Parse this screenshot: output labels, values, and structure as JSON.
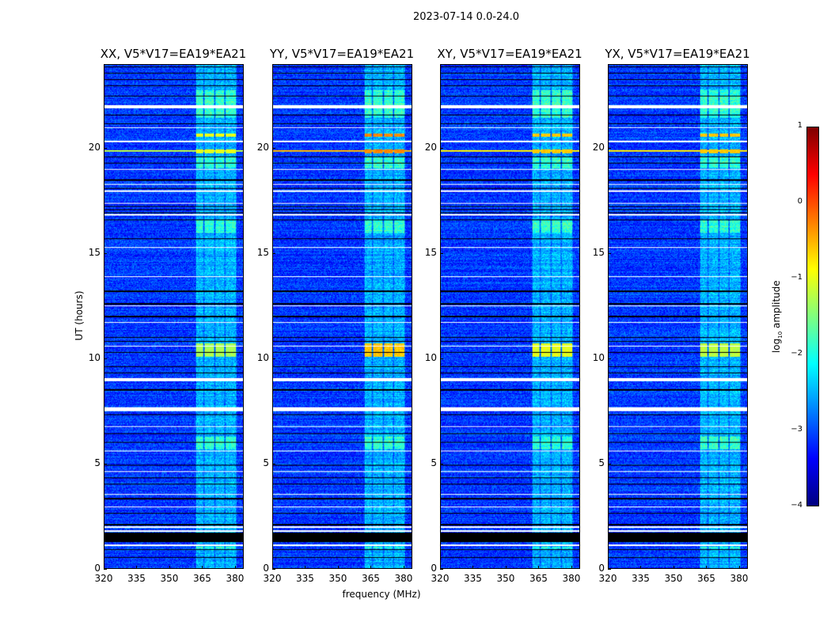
{
  "figure_title": "2023-07-14 0.0-24.0",
  "chart_data": {
    "type": "heatmap",
    "title": "2023-07-14 0.0-24.0",
    "xlabel": "frequency (MHz)",
    "ylabel": "UT (hours)",
    "xlim": [
      320,
      384
    ],
    "ylim": [
      0,
      24
    ],
    "xticks": [
      "320",
      "335",
      "350",
      "365",
      "380"
    ],
    "yticks": [
      "0",
      "5",
      "10",
      "15",
      "20"
    ],
    "panels": [
      {
        "title": "XX, V5*V17=EA19*EA21",
        "band_peak": -1.3,
        "rfi_peak": -1.0
      },
      {
        "title": "YY, V5*V17=EA19*EA21",
        "band_peak": -0.6,
        "rfi_peak": -0.3
      },
      {
        "title": "XY, V5*V17=EA19*EA21",
        "band_peak": -1.0,
        "rfi_peak": -0.6
      },
      {
        "title": "YX, V5*V17=EA19*EA21",
        "band_peak": -1.2,
        "rfi_peak": -0.6
      }
    ],
    "background_level": -3.1,
    "bright_band_mhz": [
      362,
      381
    ],
    "bright_band_level": -2.3,
    "flagged_black_hours": [
      [
        1.27,
        1.72
      ],
      [
        0.5,
        0.55
      ],
      [
        0.88,
        0.93
      ],
      [
        2.05,
        2.12
      ],
      [
        2.6,
        2.65
      ],
      [
        3.3,
        3.35
      ],
      [
        4.0,
        4.05
      ],
      [
        4.3,
        4.36
      ],
      [
        4.9,
        4.95
      ],
      [
        6.0,
        6.05
      ],
      [
        6.4,
        6.45
      ],
      [
        7.3,
        7.35
      ],
      [
        8.5,
        8.55
      ],
      [
        9.3,
        9.35
      ],
      [
        9.6,
        9.65
      ],
      [
        10.3,
        10.34
      ],
      [
        10.8,
        10.86
      ],
      [
        11.0,
        11.05
      ],
      [
        12.0,
        12.05
      ],
      [
        12.6,
        12.65
      ],
      [
        13.2,
        13.25
      ],
      [
        15.7,
        15.76
      ],
      [
        16.6,
        16.65
      ],
      [
        16.95,
        17.0
      ],
      [
        17.1,
        17.15
      ],
      [
        17.25,
        17.3
      ],
      [
        18.1,
        18.15
      ],
      [
        18.5,
        18.56
      ],
      [
        19.3,
        19.35
      ],
      [
        19.6,
        19.65
      ],
      [
        21.2,
        21.25
      ],
      [
        21.6,
        21.65
      ],
      [
        22.5,
        22.55
      ],
      [
        23.0,
        23.05
      ],
      [
        23.3,
        23.35
      ],
      [
        23.6,
        23.65
      ],
      [
        23.9,
        23.95
      ]
    ],
    "flagged_white_hours": [
      [
        1.08,
        1.15
      ],
      [
        1.76,
        1.82
      ],
      [
        1.95,
        2.0
      ],
      [
        2.9,
        2.94
      ],
      [
        3.5,
        3.54
      ],
      [
        4.6,
        4.64
      ],
      [
        5.6,
        5.64
      ],
      [
        6.75,
        6.8
      ],
      [
        7.5,
        7.7
      ],
      [
        8.95,
        9.1
      ],
      [
        10.6,
        10.64
      ],
      [
        11.7,
        11.74
      ],
      [
        12.5,
        12.55
      ],
      [
        13.9,
        13.94
      ],
      [
        15.3,
        15.34
      ],
      [
        16.85,
        16.9
      ],
      [
        17.4,
        17.45
      ],
      [
        17.95,
        18.02
      ],
      [
        18.3,
        18.35
      ],
      [
        19.0,
        19.04
      ],
      [
        20.35,
        20.4
      ],
      [
        21.0,
        21.04
      ],
      [
        21.95,
        22.1
      ]
    ],
    "colorbar": {
      "label": "log10 amplitude",
      "label_main": "log",
      "label_sub": "10",
      "label_rest": " amplitude",
      "range": [
        -4,
        1
      ],
      "ticks": [
        "1",
        "0",
        "−1",
        "−2",
        "−3",
        "−4"
      ],
      "colormap": "jet"
    }
  }
}
